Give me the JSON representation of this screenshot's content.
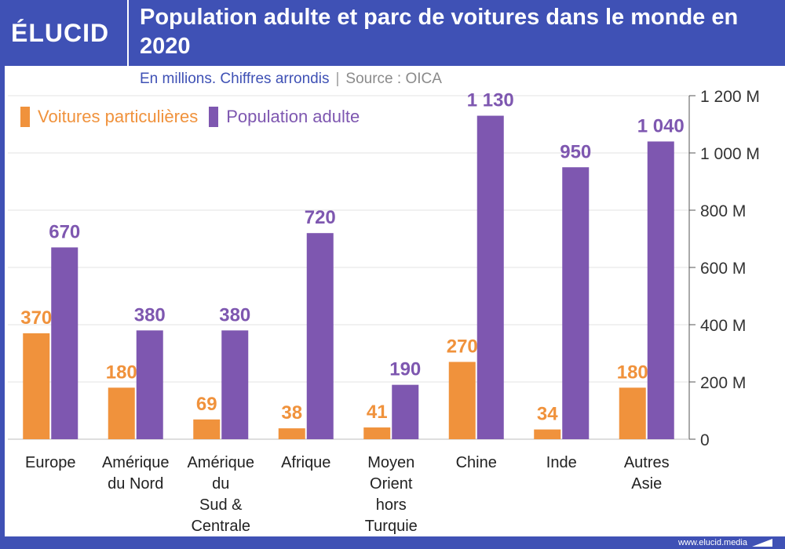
{
  "header": {
    "logo": "ÉLUCID",
    "title": "Population adulte et parc de voitures dans le monde en 2020"
  },
  "subtitle": {
    "text": "En millions. Chiffres arrondis",
    "separator": "|",
    "source": "Source : OICA"
  },
  "footer": {
    "site": "www.elucid.media"
  },
  "colors": {
    "cars": "#f0923c",
    "population": "#7e57b0",
    "brand": "#3f51b5"
  },
  "chart_data": {
    "type": "bar",
    "title": "Population adulte et parc de voitures dans le monde en 2020",
    "ylim": [
      0,
      1200
    ],
    "yticks": [
      0,
      200,
      400,
      600,
      800,
      1000,
      1200
    ],
    "ytick_labels": [
      "0",
      "200 M",
      "400 M",
      "600 M",
      "800 M",
      "1 000 M",
      "1 200 M"
    ],
    "categories": [
      [
        "Europe"
      ],
      [
        "Amérique",
        "du Nord"
      ],
      [
        "Amérique",
        "du",
        "Sud &",
        "Centrale"
      ],
      [
        "Afrique"
      ],
      [
        "Moyen",
        "Orient",
        "hors",
        "Turquie"
      ],
      [
        "Chine"
      ],
      [
        "Inde"
      ],
      [
        "Autres",
        "Asie"
      ]
    ],
    "series": [
      {
        "name": "Voitures particulières",
        "values": [
          370,
          180,
          69,
          38,
          41,
          270,
          34,
          180
        ],
        "labels": [
          "370",
          "180",
          "69",
          "38",
          "41",
          "270",
          "34",
          "180"
        ]
      },
      {
        "name": "Population adulte",
        "values": [
          670,
          380,
          380,
          720,
          190,
          1130,
          950,
          1040
        ],
        "labels": [
          "670",
          "380",
          "380",
          "720",
          "190",
          "1 130",
          "950",
          "1 040"
        ]
      }
    ],
    "legend": "top-left",
    "grid": true
  }
}
